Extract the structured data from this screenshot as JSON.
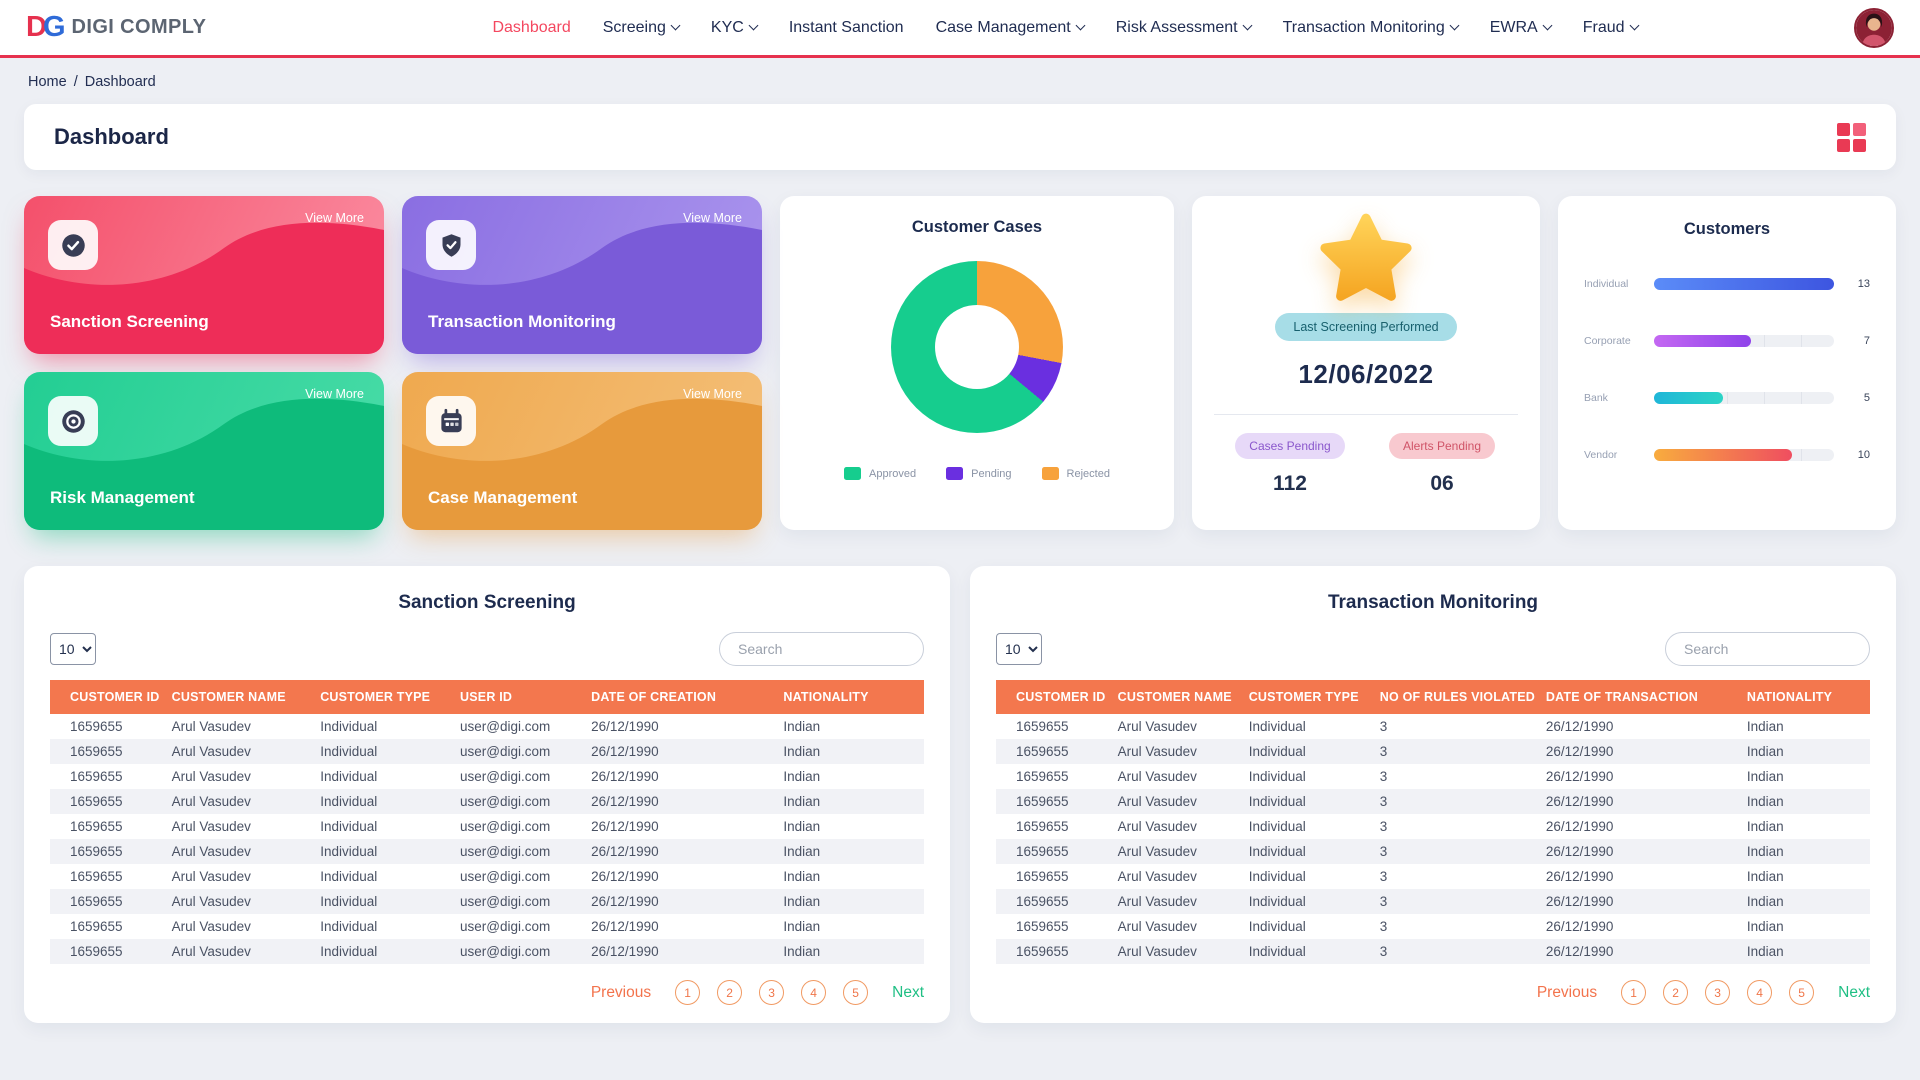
{
  "header": {
    "logo_text": "DG",
    "brand": "DIGI COMPLY",
    "nav": [
      {
        "label": "Dashboard",
        "caret": false,
        "active": true
      },
      {
        "label": "Screeing",
        "caret": true
      },
      {
        "label": "KYC",
        "caret": true
      },
      {
        "label": "Instant Sanction",
        "caret": false
      },
      {
        "label": "Case Management",
        "caret": true
      },
      {
        "label": "Risk Assessment",
        "caret": true
      },
      {
        "label": "Transaction Monitoring",
        "caret": true
      },
      {
        "label": "EWRA",
        "caret": true
      },
      {
        "label": "Fraud",
        "caret": true
      }
    ]
  },
  "breadcrumb": {
    "home": "Home",
    "sep": "/",
    "current": "Dashboard"
  },
  "page_title": "Dashboard",
  "feature_cards": [
    {
      "title": "Sanction Screening",
      "action": "View More",
      "color": "#EE2D58"
    },
    {
      "title": "Transaction Monitoring",
      "action": "View More",
      "color": "#7A5BD8"
    },
    {
      "title": "Risk Management",
      "action": "View More",
      "color": "#0EBB7B"
    },
    {
      "title": "Case Management",
      "action": "View More",
      "color": "#E79A3C"
    }
  ],
  "screening_card": {
    "badge": "Last Screening Performed",
    "date": "12/06/2022",
    "stats": [
      {
        "label": "Cases Pending",
        "value": "112"
      },
      {
        "label": "Alerts Pending",
        "value": "06"
      }
    ]
  },
  "chart_data": [
    {
      "type": "pie",
      "variant": "donut",
      "title": "Customer Cases",
      "legend_position": "bottom",
      "segments": [
        {
          "label": "Rejected",
          "value": 28,
          "color": "#F7A23C"
        },
        {
          "label": "Pending",
          "value": 8,
          "color": "#6A2FE0"
        },
        {
          "label": "Approved",
          "value": 64,
          "color": "#16CD8E"
        }
      ],
      "legend": [
        {
          "label": "Approved",
          "color": "#16CD8E"
        },
        {
          "label": "Pending",
          "color": "#6A2FE0"
        },
        {
          "label": "Rejected",
          "color": "#F7A23C"
        }
      ]
    },
    {
      "type": "bar",
      "orientation": "horizontal",
      "title": "Customers",
      "categories": [
        "Individual",
        "Corporate",
        "Bank",
        "Vendor"
      ],
      "values": [
        13,
        7,
        5,
        10
      ],
      "xmax": 13,
      "grid": true,
      "bar_colors": [
        [
          "#5B8CF8",
          "#3D55E0"
        ],
        [
          "#C468F2",
          "#8F43EA"
        ],
        [
          "#1FB6D8",
          "#2BD4C6"
        ],
        [
          "#F8AC3E",
          "#EF4E60"
        ]
      ]
    }
  ],
  "tables": [
    {
      "title": "Sanction Screening",
      "page_size": "10",
      "search_placeholder": "Search",
      "search_value": "",
      "columns": [
        "CUSTOMER ID",
        "CUSTOMER NAME",
        "CUSTOMER TYPE",
        "USER ID",
        "DATE OF CREATION",
        "NATIONALITY"
      ],
      "rows": [
        [
          "1659655",
          "Arul Vasudev",
          "Individual",
          "user@digi.com",
          "26/12/1990",
          "Indian"
        ],
        [
          "1659655",
          "Arul Vasudev",
          "Individual",
          "user@digi.com",
          "26/12/1990",
          "Indian"
        ],
        [
          "1659655",
          "Arul Vasudev",
          "Individual",
          "user@digi.com",
          "26/12/1990",
          "Indian"
        ],
        [
          "1659655",
          "Arul Vasudev",
          "Individual",
          "user@digi.com",
          "26/12/1990",
          "Indian"
        ],
        [
          "1659655",
          "Arul Vasudev",
          "Individual",
          "user@digi.com",
          "26/12/1990",
          "Indian"
        ],
        [
          "1659655",
          "Arul Vasudev",
          "Individual",
          "user@digi.com",
          "26/12/1990",
          "Indian"
        ],
        [
          "1659655",
          "Arul Vasudev",
          "Individual",
          "user@digi.com",
          "26/12/1990",
          "Indian"
        ],
        [
          "1659655",
          "Arul Vasudev",
          "Individual",
          "user@digi.com",
          "26/12/1990",
          "Indian"
        ],
        [
          "1659655",
          "Arul Vasudev",
          "Individual",
          "user@digi.com",
          "26/12/1990",
          "Indian"
        ],
        [
          "1659655",
          "Arul Vasudev",
          "Individual",
          "user@digi.com",
          "26/12/1990",
          "Indian"
        ]
      ],
      "pagination": {
        "previous": "Previous",
        "pages": [
          "1",
          "2",
          "3",
          "4",
          "5"
        ],
        "next": "Next"
      }
    },
    {
      "title": "Transaction Monitoring",
      "page_size": "10",
      "search_placeholder": "Search",
      "search_value": "",
      "columns": [
        "CUSTOMER ID",
        "CUSTOMER NAME",
        "CUSTOMER TYPE",
        "NO OF RULES VIOLATED",
        "DATE OF TRANSACTION",
        "NATIONALITY"
      ],
      "rows": [
        [
          "1659655",
          "Arul Vasudev",
          "Individual",
          "3",
          "26/12/1990",
          "Indian"
        ],
        [
          "1659655",
          "Arul Vasudev",
          "Individual",
          "3",
          "26/12/1990",
          "Indian"
        ],
        [
          "1659655",
          "Arul Vasudev",
          "Individual",
          "3",
          "26/12/1990",
          "Indian"
        ],
        [
          "1659655",
          "Arul Vasudev",
          "Individual",
          "3",
          "26/12/1990",
          "Indian"
        ],
        [
          "1659655",
          "Arul Vasudev",
          "Individual",
          "3",
          "26/12/1990",
          "Indian"
        ],
        [
          "1659655",
          "Arul Vasudev",
          "Individual",
          "3",
          "26/12/1990",
          "Indian"
        ],
        [
          "1659655",
          "Arul Vasudev",
          "Individual",
          "3",
          "26/12/1990",
          "Indian"
        ],
        [
          "1659655",
          "Arul Vasudev",
          "Individual",
          "3",
          "26/12/1990",
          "Indian"
        ],
        [
          "1659655",
          "Arul Vasudev",
          "Individual",
          "3",
          "26/12/1990",
          "Indian"
        ],
        [
          "1659655",
          "Arul Vasudev",
          "Individual",
          "3",
          "26/12/1990",
          "Indian"
        ]
      ],
      "pagination": {
        "previous": "Previous",
        "pages": [
          "1",
          "2",
          "3",
          "4",
          "5"
        ],
        "next": "Next"
      }
    }
  ]
}
